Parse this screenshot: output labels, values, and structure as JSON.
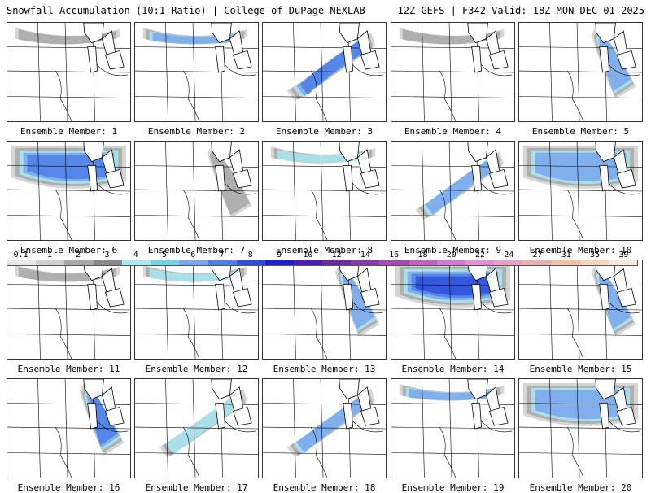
{
  "header": {
    "left": "Snowfall Accumulation (10:1 Ratio) | College of DuPage NEXLAB",
    "right": "12Z GEFS | F342 Valid: 18Z MON DEC 01 2025"
  },
  "panels": [
    {
      "label": "Ensemble Member: 1",
      "intensity": 0.25,
      "focus": "north"
    },
    {
      "label": "Ensemble Member: 2",
      "intensity": 0.55,
      "focus": "north"
    },
    {
      "label": "Ensemble Member: 3",
      "intensity": 0.6,
      "focus": "band"
    },
    {
      "label": "Ensemble Member: 4",
      "intensity": 0.3,
      "focus": "north"
    },
    {
      "label": "Ensemble Member: 5",
      "intensity": 0.45,
      "focus": "east"
    },
    {
      "label": "Ensemble Member: 6",
      "intensity": 0.6,
      "focus": "broad"
    },
    {
      "label": "Ensemble Member: 7",
      "intensity": 0.2,
      "focus": "east"
    },
    {
      "label": "Ensemble Member: 8",
      "intensity": 0.4,
      "focus": "north"
    },
    {
      "label": "Ensemble Member: 9",
      "intensity": 0.5,
      "focus": "band"
    },
    {
      "label": "Ensemble Member: 10",
      "intensity": 0.45,
      "focus": "broad"
    },
    {
      "label": "Ensemble Member: 11",
      "intensity": 0.15,
      "focus": "north"
    },
    {
      "label": "Ensemble Member: 12",
      "intensity": 0.35,
      "focus": "north"
    },
    {
      "label": "Ensemble Member: 13",
      "intensity": 0.55,
      "focus": "east"
    },
    {
      "label": "Ensemble Member: 14",
      "intensity": 0.8,
      "focus": "broad"
    },
    {
      "label": "Ensemble Member: 15",
      "intensity": 0.45,
      "focus": "east"
    },
    {
      "label": "Ensemble Member: 16",
      "intensity": 0.6,
      "focus": "east"
    },
    {
      "label": "Ensemble Member: 17",
      "intensity": 0.35,
      "focus": "band"
    },
    {
      "label": "Ensemble Member: 18",
      "intensity": 0.5,
      "focus": "band"
    },
    {
      "label": "Ensemble Member: 19",
      "intensity": 0.55,
      "focus": "north"
    },
    {
      "label": "Ensemble Member: 20",
      "intensity": 0.5,
      "focus": "broad"
    }
  ],
  "colorbar": {
    "labels": [
      "0.1",
      "1",
      "2",
      "3",
      "4",
      "5",
      "6",
      "7",
      "8",
      "9",
      "10",
      "12",
      "14",
      "16",
      "18",
      "20",
      "22",
      "24",
      "27",
      "31",
      "35",
      "39"
    ],
    "colors": [
      "#e8e8e8",
      "#cfcfcf",
      "#a8a8a8",
      "#8a8a8a",
      "#a9e8f2",
      "#6fd0e6",
      "#7aa7ee",
      "#4d7fe6",
      "#2f4fdc",
      "#1f1fcf",
      "#4a1fb0",
      "#6a2aa0",
      "#8a3aa8",
      "#a24ab0",
      "#c060c0",
      "#d07ad0",
      "#e090d8",
      "#e8a0c8",
      "#e8b0b0",
      "#f0c0a8",
      "#f6d4c0",
      "#fbe6dc"
    ]
  }
}
